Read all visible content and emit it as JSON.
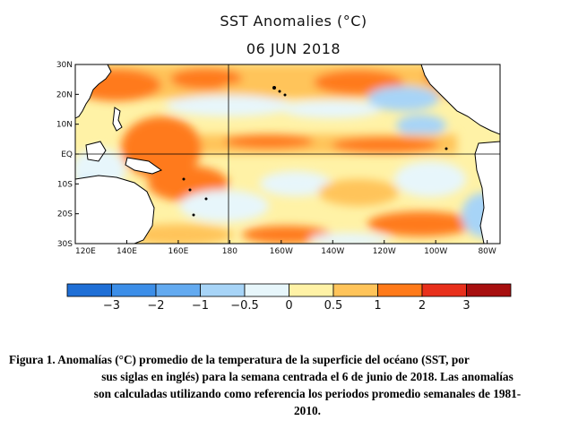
{
  "map": {
    "title": "SST Anomalies (°C)",
    "date": "06 JUN 2018",
    "lat_labels": [
      "30N",
      "20N",
      "10N",
      "EQ",
      "10S",
      "20S",
      "30S"
    ],
    "lon_labels": [
      "120E",
      "140E",
      "160E",
      "180",
      "160W",
      "140W",
      "120W",
      "100W",
      "80W"
    ],
    "lat_range": [
      -30,
      30
    ],
    "lon_range": [
      120,
      285
    ]
  },
  "colorbar": {
    "labels": [
      "−3",
      "−2",
      "−1",
      "−0.5",
      "0",
      "0.5",
      "1",
      "2",
      "3"
    ],
    "colors": [
      "#1f6fd6",
      "#3c8ee8",
      "#63aaf0",
      "#a7d4f7",
      "#e7f6fb",
      "#fff2a6",
      "#ffc45a",
      "#ff7a1a",
      "#e8301c",
      "#a70f0f"
    ]
  },
  "caption": {
    "line1": "Figura 1. Anomalías (°C) promedio de la temperatura de la superficie del océano (SST, por",
    "line2": "sus siglas en inglés) para la semana centrada el 6 de junio de 2018. Las anomalías",
    "line3": "son calculadas utilizando como referencia los periodos promedio semanales de 1981-",
    "line4": "2010."
  }
}
